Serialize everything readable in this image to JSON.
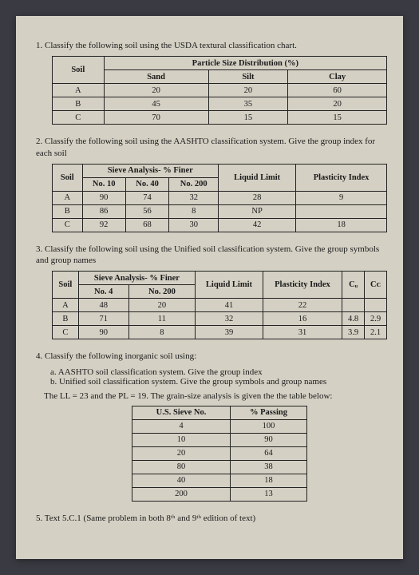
{
  "q1": {
    "text": "1.  Classify the following soil using the USDA textural classification chart.",
    "header_span": "Particle Size Distribution (%)",
    "cols": [
      "Soil",
      "Sand",
      "Silt",
      "Clay"
    ],
    "rows": [
      [
        "A",
        "20",
        "20",
        "60"
      ],
      [
        "B",
        "45",
        "35",
        "20"
      ],
      [
        "C",
        "70",
        "15",
        "15"
      ]
    ]
  },
  "q2": {
    "text": "2.  Classify the following soil using the AASHTO classification system.  Give the group index for each soil",
    "header_span": "Sieve Analysis- % Finer",
    "cols": [
      "Soil",
      "No. 10",
      "No. 40",
      "No. 200",
      "Liquid Limit",
      "Plasticity Index"
    ],
    "rows": [
      [
        "A",
        "90",
        "74",
        "32",
        "28",
        "9"
      ],
      [
        "B",
        "86",
        "56",
        "8",
        "NP",
        ""
      ],
      [
        "C",
        "92",
        "68",
        "30",
        "42",
        "18"
      ]
    ]
  },
  "q3": {
    "text": "3.  Classify the following soil using the Unified soil classification system.  Give the group symbols and group names",
    "header_span": "Sieve Analysis- % Finer",
    "cols": [
      "Soil",
      "No. 4",
      "No. 200",
      "Liquid Limit",
      "Plasticity Index",
      "Cᵤ",
      "Cᴄ"
    ],
    "rows": [
      [
        "A",
        "48",
        "20",
        "41",
        "22",
        "",
        ""
      ],
      [
        "B",
        "71",
        "11",
        "32",
        "16",
        "4.8",
        "2.9"
      ],
      [
        "C",
        "90",
        "8",
        "39",
        "31",
        "3.9",
        "2.1"
      ]
    ]
  },
  "q4": {
    "text": "4.  Classify the following inorganic soil using:",
    "a": "a. AASHTO soil classification system.  Give the group index",
    "b": "b. Unified soil classification system.  Give the group symbols and group names",
    "note": "The LL = 23 and the PL = 19.  The grain-size analysis is given the the table below:",
    "cols": [
      "U.S. Sieve No.",
      "% Passing"
    ],
    "rows": [
      [
        "4",
        "100"
      ],
      [
        "10",
        "90"
      ],
      [
        "20",
        "64"
      ],
      [
        "80",
        "38"
      ],
      [
        "40",
        "18"
      ],
      [
        "200",
        "13"
      ]
    ]
  },
  "q5": {
    "text": "5.  Text 5.C.1  (Same problem in both 8ᵗʰ and 9ᵗʰ edition of text)"
  }
}
